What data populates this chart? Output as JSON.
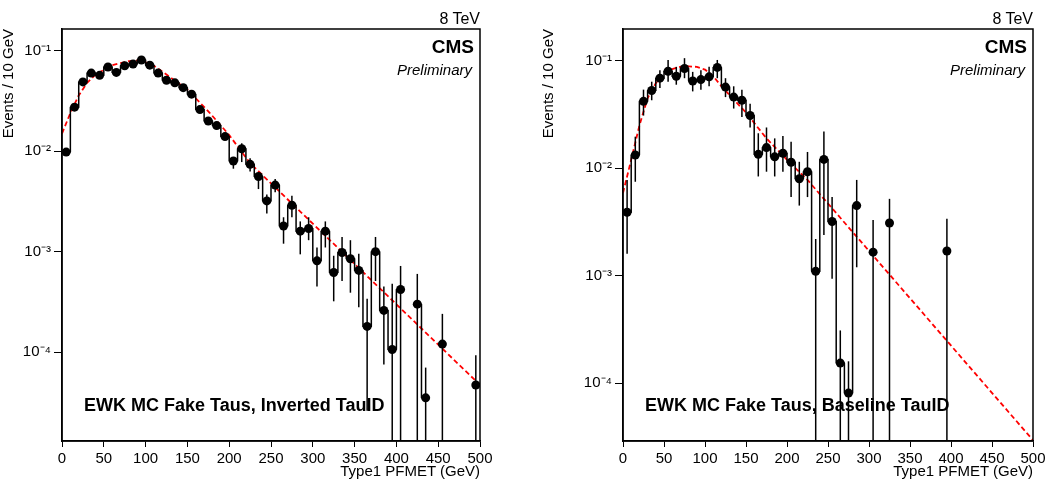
{
  "chart_data": [
    {
      "type": "step",
      "xlabel": "Type1 PFMET (GeV)",
      "ylabel": "Events / 10 GeV",
      "log": "y",
      "grid": false,
      "legend": false,
      "annotations": [
        "8 TeV",
        "CMS",
        "Preliminary",
        "EWK MC Fake Taus, Inverted TauID"
      ],
      "xlim": [
        0,
        500
      ],
      "xticks": [
        0,
        50,
        100,
        150,
        200,
        250,
        300,
        350,
        400,
        450,
        500
      ],
      "ylim": [
        1.3e-05,
        0.165
      ],
      "yticks": [
        {
          "value": 0.0001,
          "label": "10⁻⁴"
        },
        {
          "value": 0.001,
          "label": "10⁻³"
        },
        {
          "value": 0.01,
          "label": "10⁻²"
        },
        {
          "value": 0.1,
          "label": "10⁻¹"
        }
      ],
      "x": [
        5,
        15,
        25,
        35,
        45,
        55,
        65,
        75,
        85,
        95,
        105,
        115,
        125,
        135,
        145,
        155,
        165,
        175,
        185,
        195,
        205,
        215,
        225,
        235,
        245,
        255,
        265,
        275,
        285,
        295,
        305,
        315,
        325,
        335,
        345,
        355,
        365,
        375,
        385,
        395,
        405,
        415,
        425,
        435,
        445,
        455,
        465,
        475,
        485,
        495
      ],
      "series": [
        {
          "type": "step",
          "color": "#000000",
          "marker": "circle",
          "values": [
            0.0098,
            0.0275,
            0.049,
            0.06,
            0.057,
            0.069,
            0.061,
            0.071,
            0.074,
            0.081,
            0.072,
            0.06,
            0.051,
            0.048,
            0.043,
            0.037,
            0.026,
            0.02,
            0.018,
            0.014,
            0.008,
            0.0106,
            0.0074,
            0.0056,
            0.0032,
            0.0046,
            0.0018,
            0.0029,
            0.0016,
            0.0017,
            0.00081,
            0.0016,
            0.00062,
            0.00098,
            0.00085,
            0.00065,
            0.00018,
            0.001,
            0.00026,
            0.000106,
            0.00042,
            null,
            0.0003,
            3.5e-05,
            null,
            0.00012,
            null,
            null,
            null,
            4.7e-05
          ],
          "errors": [
            null,
            null,
            null,
            null,
            null,
            null,
            null,
            null,
            null,
            null,
            null,
            null,
            null,
            null,
            null,
            null,
            null,
            null,
            null,
            null,
            [
              0.0067,
              0.0087
            ],
            [
              0.0078,
              0.012
            ],
            [
              0.0063,
              0.0085
            ],
            [
              0.0042,
              0.0061
            ],
            [
              0.0024,
              0.0037
            ],
            [
              0.0039,
              0.0053
            ],
            [
              0.0012,
              0.0022
            ],
            [
              0.0022,
              0.0036
            ],
            [
              0.00094,
              0.002
            ],
            [
              0.0013,
              0.0022
            ],
            [
              0.00045,
              0.0011
            ],
            [
              0.0011,
              0.002
            ],
            [
              0.00032,
              0.00091
            ],
            [
              0.00051,
              0.0014
            ],
            [
              0.00039,
              0.0013
            ],
            [
              0.00028,
              0.00095
            ],
            [
              2.6e-05,
              0.00034
            ],
            [
              0.00051,
              0.0014
            ],
            [
              7.5e-05,
              0.00045
            ],
            [
              1.3e-05,
              0.00048
            ],
            [
              1.3e-05,
              0.00072
            ],
            null,
            [
              1.3e-05,
              0.0006
            ],
            [
              1.3e-05,
              7e-05
            ],
            null,
            [
              1.3e-05,
              0.00024
            ],
            null,
            null,
            null,
            [
              1.3e-05,
              9.3e-05
            ]
          ]
        },
        {
          "type": "line",
          "color": "#ff0000",
          "marker": "none",
          "line_style": "dashed",
          "x": [
            0,
            10,
            20,
            30,
            40,
            60,
            80,
            90,
            100,
            110,
            125,
            150,
            175,
            200,
            225,
            500
          ],
          "values": [
            0.015,
            0.024,
            0.036,
            0.048,
            0.058,
            0.072,
            0.079,
            0.08,
            0.077,
            0.071,
            0.058,
            0.041,
            0.025,
            0.0145,
            0.0076,
            4.7e-05
          ]
        }
      ]
    },
    {
      "type": "step",
      "xlabel": "Type1 PFMET (GeV)",
      "ylabel": "Events / 10 GeV",
      "log": "y",
      "grid": false,
      "legend": false,
      "annotations": [
        "8 TeV",
        "CMS",
        "Preliminary",
        "EWK MC Fake Taus, Baseline TauID"
      ],
      "xlim": [
        0,
        500
      ],
      "xticks": [
        0,
        50,
        100,
        150,
        200,
        250,
        300,
        350,
        400,
        450,
        500
      ],
      "ylim": [
        2.9e-05,
        0.198
      ],
      "yticks": [
        {
          "value": 0.0001,
          "label": "10⁻⁴"
        },
        {
          "value": 0.001,
          "label": "10⁻³"
        },
        {
          "value": 0.01,
          "label": "10⁻²"
        },
        {
          "value": 0.1,
          "label": "10⁻¹"
        }
      ],
      "series": [
        {
          "type": "step",
          "color": "#000000",
          "marker": "circle",
          "x": [
            5,
            15,
            25,
            35,
            45,
            55,
            65,
            75,
            85,
            95,
            105,
            115,
            125,
            135,
            145,
            155,
            165,
            175,
            185,
            195,
            205,
            215,
            225,
            235,
            245,
            255,
            265,
            275,
            285,
            295,
            305,
            315,
            325,
            335,
            345,
            355,
            365,
            375,
            385,
            395
          ],
          "values": [
            0.0039,
            0.0133,
            0.042,
            0.053,
            0.069,
            0.08,
            0.072,
            0.085,
            0.065,
            0.067,
            0.071,
            0.087,
            0.057,
            0.046,
            0.043,
            0.031,
            0.0135,
            0.0156,
            0.0128,
            0.0138,
            0.0114,
            0.008,
            0.0093,
            0.0011,
            0.0121,
            0.0032,
            0.000154,
            8.1e-05,
            0.0045,
            null,
            0.00166,
            null,
            0.0031,
            null,
            null,
            null,
            null,
            null,
            null,
            0.0017
          ],
          "errors": [
            [
              0.0016,
              0.0078
            ],
            [
              0.0075,
              0.0197
            ],
            [
              0.031,
              0.054
            ],
            [
              0.043,
              0.064
            ],
            [
              0.056,
              0.082
            ],
            [
              0.064,
              0.102
            ],
            [
              0.06,
              0.088
            ],
            [
              0.069,
              0.106
            ],
            [
              0.052,
              0.079
            ],
            [
              0.054,
              0.082
            ],
            [
              0.058,
              0.088
            ],
            [
              0.069,
              0.102
            ],
            [
              0.046,
              0.069
            ],
            [
              0.036,
              0.058
            ],
            [
              0.03,
              0.054
            ],
            [
              0.024,
              0.04
            ],
            [
              0.0084,
              0.0212
            ],
            [
              0.0093,
              0.024
            ],
            [
              0.0084,
              0.019
            ],
            [
              0.0093,
              0.02
            ],
            [
              0.0054,
              0.0177
            ],
            [
              0.0045,
              0.0115
            ],
            [
              0.0054,
              0.0142
            ],
            [
              2.9e-05,
              0.0022
            ],
            [
              0.0024,
              0.022
            ],
            [
              0.00094,
              0.0054
            ],
            [
              2.9e-05,
              0.00031
            ],
            [
              2.9e-05,
              0.00016
            ],
            [
              0.0012,
              0.0078
            ],
            null,
            [
              2.9e-05,
              0.0033
            ],
            null,
            [
              2.9e-05,
              0.0052
            ],
            null,
            null,
            null,
            null,
            null,
            null,
            [
              2.9e-05,
              0.0034
            ]
          ]
        },
        {
          "type": "line",
          "color": "#ff0000",
          "marker": "none",
          "line_style": "dashed",
          "x": [
            0,
            10,
            20,
            30,
            40,
            50,
            60,
            70,
            80,
            90,
            100,
            110,
            120,
            130,
            150,
            175,
            200,
            225,
            500
          ],
          "values": [
            0.0059,
            0.012,
            0.025,
            0.045,
            0.062,
            0.075,
            0.084,
            0.088,
            0.089,
            0.088,
            0.083,
            0.072,
            0.058,
            0.048,
            0.033,
            0.019,
            0.012,
            0.0078,
            2.95e-05
          ]
        }
      ]
    }
  ]
}
